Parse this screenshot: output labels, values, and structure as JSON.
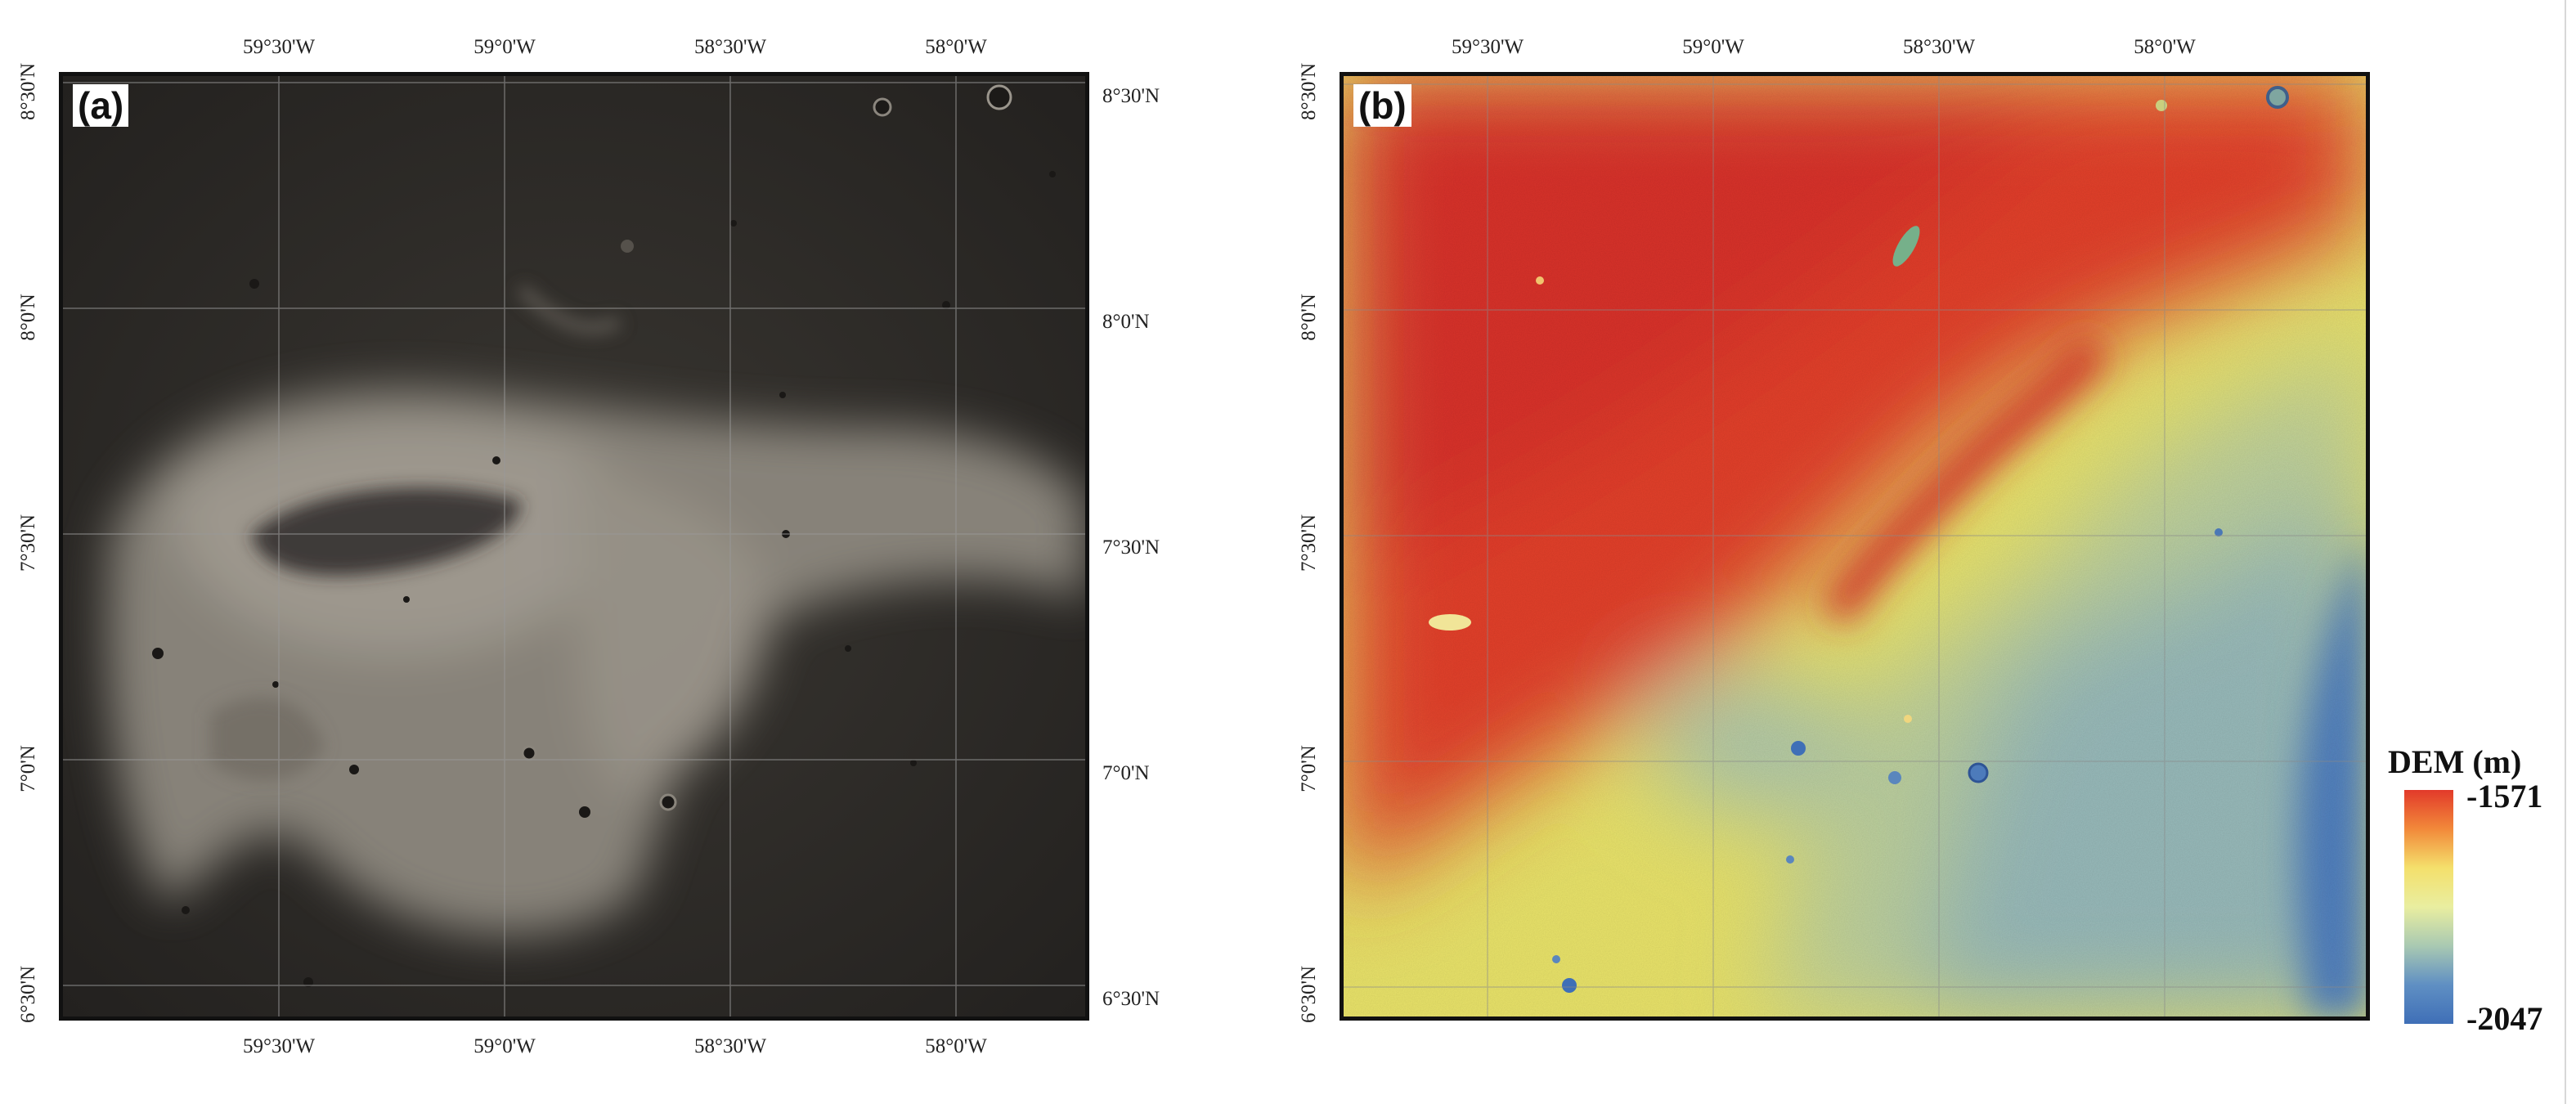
{
  "panels": [
    {
      "id": "a",
      "label": "(a)",
      "lon_ticks_top": [
        "59°30'W",
        "59°0'W",
        "58°30'W",
        "58°0'W"
      ],
      "lon_ticks_bottom": [
        "59°30'W",
        "59°0'W",
        "58°30'W",
        "58°0'W"
      ],
      "lat_ticks_right": [
        "8°30'N",
        "8°0'N",
        "7°30'N",
        "7°0'N",
        "6°30'N"
      ],
      "lat_ticks_left": [
        "8°30'N",
        "8°0'N",
        "7°30'N",
        "7°0'N",
        "6°30'N"
      ]
    },
    {
      "id": "b",
      "label": "(b)",
      "lon_ticks_top": [
        "59°30'W",
        "59°0'W",
        "58°30'W",
        "58°0'W"
      ],
      "lat_ticks_left": [
        "8°30'N",
        "8°0'N",
        "7°30'N",
        "7°0'N",
        "6°30'N"
      ]
    }
  ],
  "legend": {
    "title": "DEM (m)",
    "max_label": "-1571",
    "min_label": "-2047",
    "colors": [
      "#e23a2a",
      "#f2893a",
      "#f4e06c",
      "#e9eea0",
      "#a9c9b2",
      "#5f8fc3",
      "#3f6fb7"
    ]
  },
  "colors": {
    "photo_background": "#2d2b28",
    "photo_ejecta": "#8f8a81",
    "grid_line": "#9a9a9a",
    "frame": "#111111"
  }
}
